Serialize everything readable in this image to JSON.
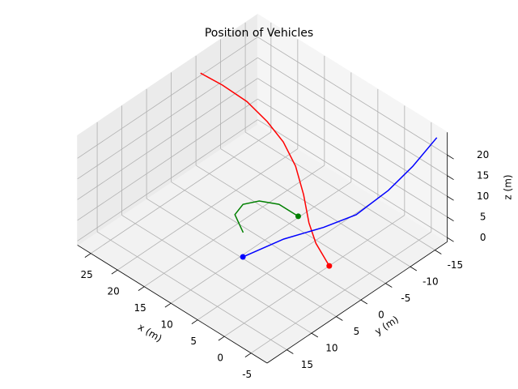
{
  "chart_data": {
    "type": "line3d",
    "title": "Position of Vehicles",
    "xlabel": "x (m)",
    "ylabel": "y (m)",
    "zlabel": "z (m)",
    "xlim": [
      -8,
      27.5
    ],
    "ylim": [
      -17.5,
      19
    ],
    "zlim": [
      -1,
      25.5
    ],
    "xticks": [
      -5,
      0,
      5,
      10,
      15,
      20,
      25
    ],
    "yticks": [
      -15,
      -10,
      -5,
      0,
      5,
      10,
      15
    ],
    "zticks": [
      0,
      5,
      10,
      15,
      20
    ],
    "grid": true,
    "series": [
      {
        "color": "#ff0000",
        "marker": "end",
        "x": [
          24.8,
          20.7,
          16.1,
          12.3,
          9.3,
          7.0,
          5.5,
          4.5,
          3.2,
          -0.6
        ],
        "y": [
          -3,
          -3,
          -3,
          -3,
          -3,
          -3,
          -3,
          -3,
          -3,
          -1.6
        ],
        "z": [
          25.1,
          25.5,
          25.2,
          23.4,
          20.9,
          16.9,
          11.2,
          5.2,
          1.3,
          0
        ]
      },
      {
        "color": "#0000ff",
        "marker": "start",
        "x": [
          9.1,
          5.8,
          2.6,
          0.0,
          -2.6,
          -4.6,
          -6.5
        ],
        "y": [
          5.4,
          0.7,
          -3.9,
          -7.7,
          -11.4,
          -14.2,
          -17
        ],
        "z": [
          0,
          3.2,
          4.9,
          7.0,
          12.0,
          17.2,
          23.4
        ]
      },
      {
        "color": "#008000",
        "marker": "end",
        "x": [
          10.8,
          14.2,
          14.9,
          13.8,
          11.4,
          7.8
        ],
        "y": [
          3.5,
          1.5,
          -0.9,
          -3,
          -4.4,
          -4.4
        ],
        "z": [
          3,
          3,
          3,
          3,
          3,
          3
        ]
      }
    ]
  }
}
